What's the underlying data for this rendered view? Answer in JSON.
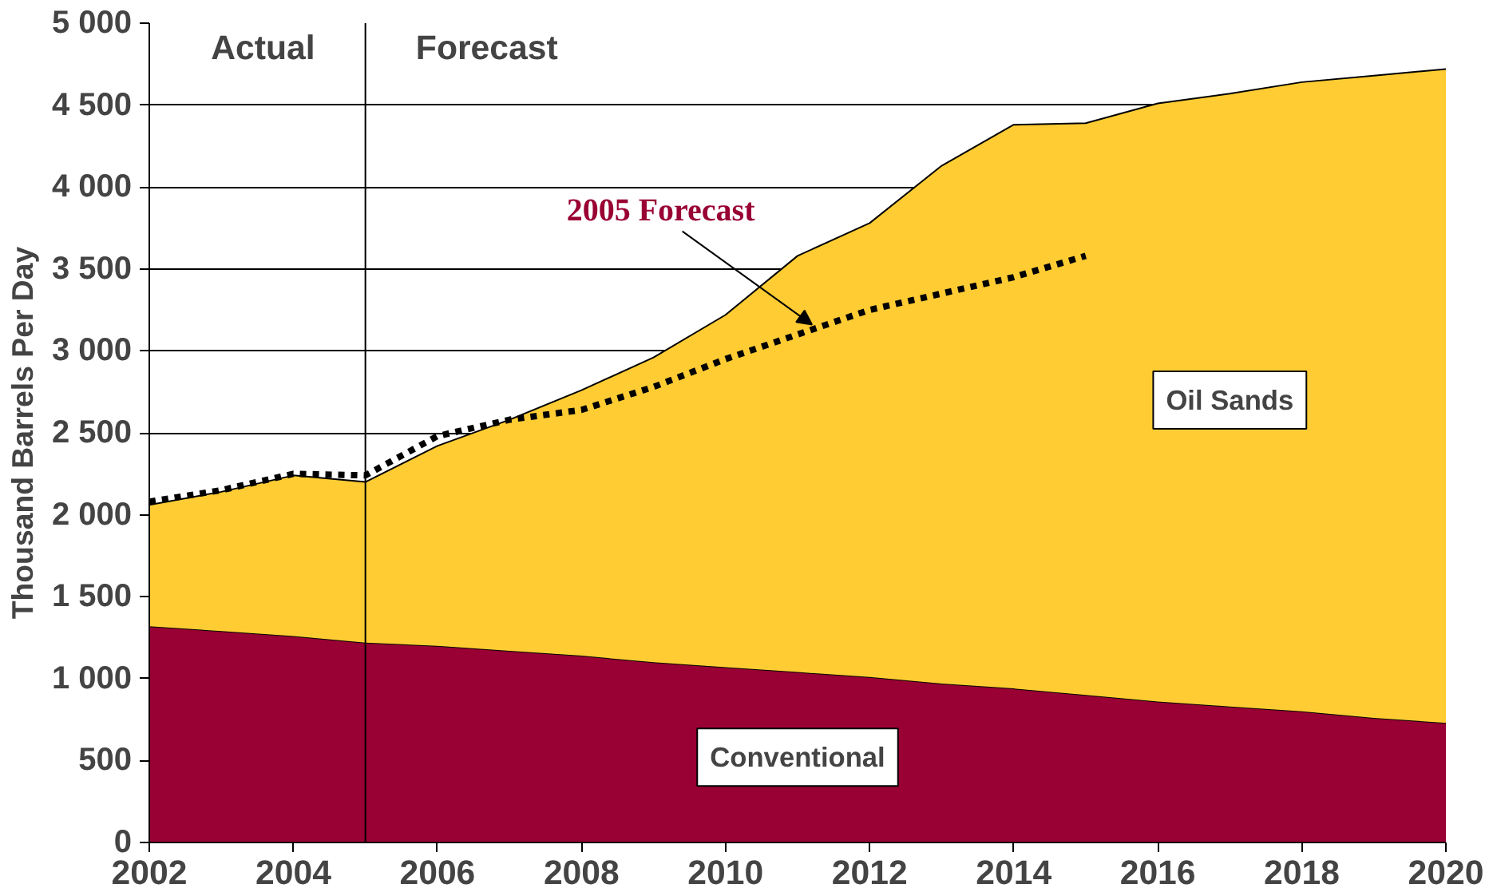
{
  "chart_data": {
    "type": "area",
    "stacked": true,
    "ylabel": "Thousand Barrels Per Day",
    "x": [
      2002,
      2003,
      2004,
      2005,
      2006,
      2007,
      2008,
      2009,
      2010,
      2011,
      2012,
      2013,
      2014,
      2015,
      2016,
      2017,
      2018,
      2019,
      2020
    ],
    "series": [
      {
        "name": "Conventional",
        "color": "#990033",
        "values": [
          1320,
          1290,
          1260,
          1220,
          1200,
          1170,
          1140,
          1100,
          1070,
          1040,
          1010,
          970,
          940,
          900,
          860,
          830,
          800,
          760,
          730
        ]
      },
      {
        "name": "Oil Sands",
        "color": "#ffcc33",
        "values": [
          740,
          850,
          980,
          980,
          1220,
          1410,
          1620,
          1860,
          2150,
          2540,
          2770,
          3160,
          3440,
          3490,
          3650,
          3740,
          3840,
          3920,
          3990
        ]
      },
      {
        "name": "2005 Forecast",
        "type": "line",
        "line_style": "dashed",
        "color": "#000000",
        "x": [
          2002,
          2003,
          2004,
          2005,
          2006,
          2007,
          2008,
          2009,
          2010,
          2011,
          2012,
          2013,
          2014,
          2015
        ],
        "values": [
          2080,
          2150,
          2250,
          2240,
          2480,
          2580,
          2640,
          2780,
          2950,
          3100,
          3250,
          3350,
          3450,
          3580
        ]
      }
    ],
    "xlim": [
      2002,
      2020
    ],
    "ylim": [
      0,
      5000
    ],
    "xticks": [
      2002,
      2004,
      2006,
      2008,
      2010,
      2012,
      2014,
      2016,
      2018,
      2020
    ],
    "yticks": [
      0,
      500,
      {
        "value": 1000,
        "label": "1 000"
      },
      {
        "value": 1500,
        "label": "1 500"
      },
      {
        "value": 2000,
        "label": "2 000"
      },
      {
        "value": 2500,
        "label": "2 500"
      },
      {
        "value": 3000,
        "label": "3 000"
      },
      {
        "value": 3500,
        "label": "3 500"
      },
      {
        "value": 4000,
        "label": "4 000"
      },
      {
        "value": 4500,
        "label": "4 500"
      },
      {
        "value": 5000,
        "label": "5 000"
      }
    ],
    "grid": "y",
    "ref_lines": [
      {
        "axis": "x",
        "value": 2005,
        "color": "#000000"
      }
    ],
    "annotations": [
      "Actual",
      "Forecast"
    ]
  }
}
